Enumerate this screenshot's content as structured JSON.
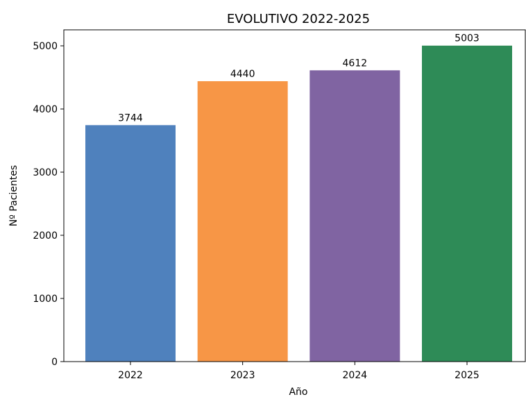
{
  "chart_data": {
    "type": "bar",
    "title": "EVOLUTIVO 2022-2025",
    "xlabel": "Año",
    "ylabel": "Nº Pacientes",
    "categories": [
      "2022",
      "2023",
      "2024",
      "2025"
    ],
    "values": [
      3744,
      4440,
      4612,
      5003
    ],
    "colors": [
      "#4f81bd",
      "#f79646",
      "#8064a2",
      "#2e8b57"
    ],
    "ylim": [
      0,
      5253
    ],
    "yticks": [
      0,
      1000,
      2000,
      3000,
      4000,
      5000
    ],
    "grid": false,
    "legend": "none"
  }
}
